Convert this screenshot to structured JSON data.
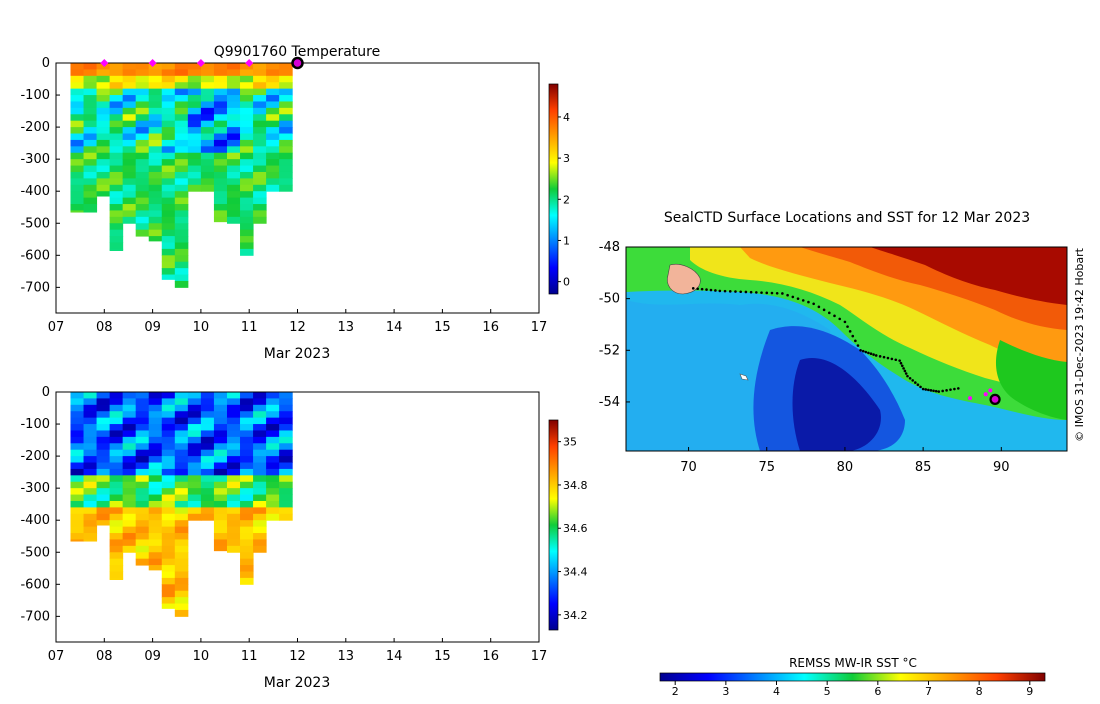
{
  "chart_data": [
    {
      "type": "heatmap",
      "panel": "temperature-section",
      "title": "Q9901760  Temperature",
      "xlabel": "Mar 2023",
      "x_ticks": [
        "07",
        "08",
        "09",
        "10",
        "11",
        "12",
        "13",
        "14",
        "15",
        "16",
        "17"
      ],
      "xlim": [
        7,
        17
      ],
      "ylim": [
        -780,
        0
      ],
      "y_ticks": [
        "0",
        "-100",
        "-200",
        "-300",
        "-400",
        "-500",
        "-600",
        "-700"
      ],
      "y_tick_values": [
        0,
        -100,
        -200,
        -300,
        -400,
        -500,
        -600,
        -700
      ],
      "colorbar": {
        "range": [
          -0.3,
          4.8
        ],
        "ticks": [
          0,
          1,
          2,
          3,
          4
        ],
        "tick_labels": [
          "0",
          "1",
          "2",
          "3",
          "4"
        ]
      },
      "profile_depths": [
        -465,
        -465,
        -415,
        -585,
        -500,
        -540,
        -555,
        -675,
        -700,
        -400,
        -400,
        -495,
        -500,
        -600,
        -500,
        -400,
        -400
      ],
      "surface_markers": [
        8,
        9,
        10,
        11
      ],
      "current_position": 12
    },
    {
      "type": "heatmap",
      "panel": "salinity-section",
      "xlabel": "Mar 2023",
      "x_ticks": [
        "07",
        "08",
        "09",
        "10",
        "11",
        "12",
        "13",
        "14",
        "15",
        "16",
        "17"
      ],
      "xlim": [
        7,
        17
      ],
      "ylim": [
        -780,
        0
      ],
      "y_ticks": [
        "0",
        "-100",
        "-200",
        "-300",
        "-400",
        "-500",
        "-600",
        "-700"
      ],
      "y_tick_values": [
        0,
        -100,
        -200,
        -300,
        -400,
        -500,
        -600,
        -700
      ],
      "colorbar": {
        "range": [
          34.13,
          35.1
        ],
        "ticks": [
          34.2,
          34.4,
          34.6,
          34.8,
          35.0
        ],
        "tick_labels": [
          "34.2",
          "34.4",
          "34.6",
          "34.8",
          "35"
        ]
      },
      "profile_depths": [
        -465,
        -465,
        -415,
        -585,
        -500,
        -540,
        -555,
        -675,
        -700,
        -400,
        -400,
        -495,
        -500,
        -600,
        -500,
        -400,
        -400
      ]
    },
    {
      "type": "heatmap",
      "panel": "sst-map",
      "title": "SealCTD Surface Locations and SST for 12 Mar 2023",
      "x_ticks": [
        "70",
        "75",
        "80",
        "85",
        "90"
      ],
      "x_tick_values": [
        70,
        75,
        80,
        85,
        90
      ],
      "xlim": [
        66,
        94.2
      ],
      "y_ticks": [
        "-48",
        "-50",
        "-52",
        "-54"
      ],
      "y_tick_values": [
        -48,
        -50,
        -52,
        -54
      ],
      "ylim": [
        -55.9,
        -48
      ],
      "colorbar": {
        "label": "REMSS MW-IR SST °C",
        "range": [
          1.7,
          9.3
        ],
        "ticks": [
          2,
          3,
          4,
          5,
          6,
          7,
          8,
          9
        ],
        "tick_labels": [
          "2",
          "3",
          "4",
          "5",
          "6",
          "7",
          "8",
          "9"
        ]
      },
      "track": [
        [
          70.3,
          -49.6
        ],
        [
          72,
          -49.7
        ],
        [
          74,
          -49.75
        ],
        [
          76,
          -49.8
        ],
        [
          78,
          -50.2
        ],
        [
          80,
          -50.9
        ],
        [
          81,
          -52
        ],
        [
          82,
          -52.2
        ],
        [
          83.5,
          -52.4
        ],
        [
          84,
          -53
        ],
        [
          85,
          -53.5
        ],
        [
          86,
          -53.6
        ],
        [
          87.5,
          -53.45
        ]
      ],
      "recent_positions": [
        [
          88,
          -53.85
        ],
        [
          89,
          -53.7
        ],
        [
          89.3,
          -53.55
        ]
      ],
      "current_position": [
        89.6,
        -53.9
      ],
      "credit": "© IMOS 31-Dec-2023 19:42 Hobart"
    }
  ]
}
